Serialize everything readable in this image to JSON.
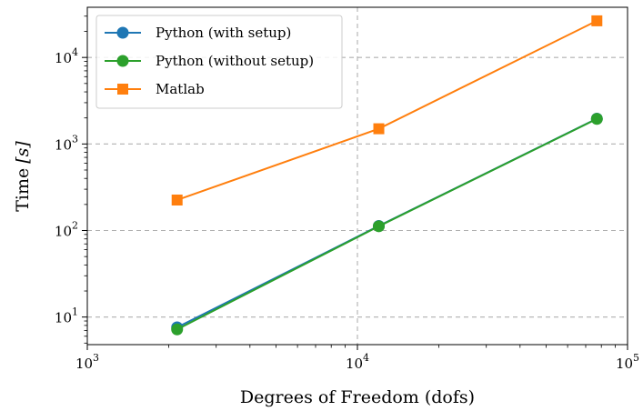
{
  "chart_data": {
    "type": "line",
    "xscale": "log",
    "yscale": "log",
    "xlabel": "Degrees of Freedom (dofs)",
    "ylabel_text": "Time",
    "ylabel_unit": "[s]",
    "xlim": [
      1000,
      100000
    ],
    "ylim": [
      4.8,
      38000
    ],
    "grid": true,
    "legend_position": "top-left",
    "x_ticks": [
      {
        "value": 1000,
        "base": "10",
        "exp": "3"
      },
      {
        "value": 10000,
        "base": "10",
        "exp": "4"
      },
      {
        "value": 100000,
        "base": "10",
        "exp": "5"
      }
    ],
    "y_ticks": [
      {
        "value": 10,
        "base": "10",
        "exp": "1"
      },
      {
        "value": 100,
        "base": "10",
        "exp": "2"
      },
      {
        "value": 1000,
        "base": "10",
        "exp": "3"
      },
      {
        "value": 10000,
        "base": "10",
        "exp": "4"
      }
    ],
    "series": [
      {
        "name": "Python (with setup)",
        "color": "#1f77b4",
        "marker": "circle",
        "x": [
          2150,
          12000,
          77000
        ],
        "y": [
          7.6,
          113,
          1960
        ]
      },
      {
        "name": "Python (without setup)",
        "color": "#2ca02c",
        "marker": "circle",
        "x": [
          2150,
          12000,
          77000
        ],
        "y": [
          7.2,
          112,
          1950
        ]
      },
      {
        "name": "Matlab",
        "color": "#ff7f0e",
        "marker": "square",
        "x": [
          2150,
          12000,
          77000
        ],
        "y": [
          225,
          1500,
          26500
        ]
      }
    ]
  }
}
